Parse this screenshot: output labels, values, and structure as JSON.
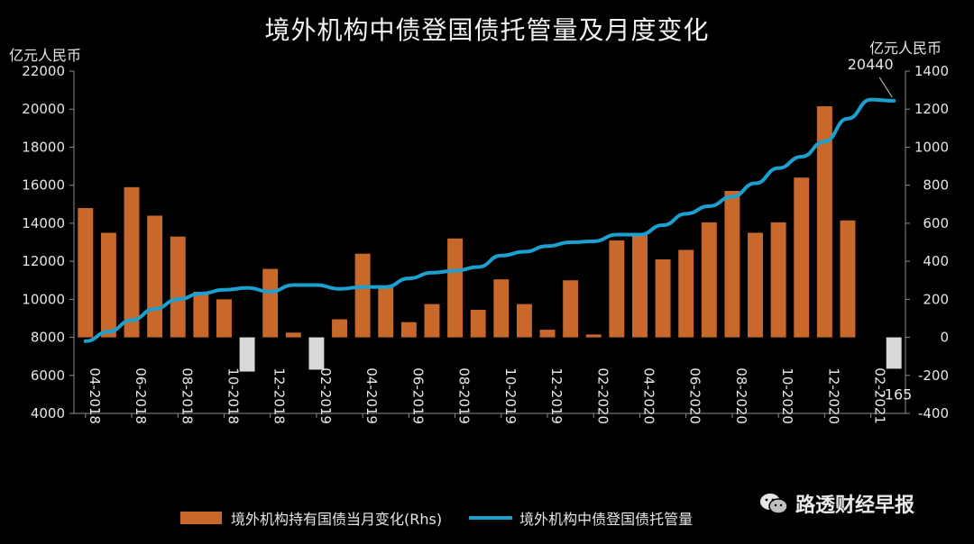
{
  "title": "境外机构中债登国债托管量及月度变化",
  "left_unit": "亿元人民币",
  "right_unit": "亿元人民币",
  "source": "路透财经早报",
  "annotations": {
    "last_line_value": "20440",
    "last_bar_value": "-165"
  },
  "colors": {
    "bar_positive": "#c8692b",
    "bar_negative": "#d9d9d9",
    "line": "#1ca0d0",
    "axis": "#8c8c8c",
    "background": "#000000"
  },
  "chart_data": {
    "type": "bar",
    "title": "境外机构中债登国债托管量及月度变化",
    "categories": [
      "04-2018",
      "05-2018",
      "06-2018",
      "07-2018",
      "08-2018",
      "09-2018",
      "10-2018",
      "11-2018",
      "12-2018",
      "01-2019",
      "02-2019",
      "03-2019",
      "04-2019",
      "05-2019",
      "06-2019",
      "07-2019",
      "08-2019",
      "09-2019",
      "10-2019",
      "11-2019",
      "12-2019",
      "01-2020",
      "02-2020",
      "03-2020",
      "04-2020",
      "05-2020",
      "06-2020",
      "07-2020",
      "08-2020",
      "09-2020",
      "10-2020",
      "11-2020",
      "12-2020",
      "01-2021",
      "02-2021",
      "03-2021"
    ],
    "x_tick_labels": [
      "04-2018",
      "06-2018",
      "08-2018",
      "10-2018",
      "12-2018",
      "02-2019",
      "04-2019",
      "06-2019",
      "08-2019",
      "10-2019",
      "12-2019",
      "02-2020",
      "04-2020",
      "06-2020",
      "08-2020",
      "10-2020",
      "12-2020",
      "02-2021"
    ],
    "series": [
      {
        "name": "境外机构持有国债当月变化(Rhs)",
        "axis": "right",
        "type": "bar",
        "values": [
          680,
          550,
          790,
          640,
          530,
          240,
          200,
          -180,
          360,
          25,
          -170,
          95,
          440,
          270,
          80,
          175,
          520,
          145,
          305,
          175,
          40,
          300,
          15,
          510,
          540,
          410,
          460,
          605,
          770,
          550,
          605,
          840,
          1215,
          615,
          0,
          -165
        ]
      },
      {
        "name": "境外机构中债登国债托管量",
        "axis": "left",
        "type": "line",
        "values": [
          7800,
          8300,
          8900,
          9500,
          10000,
          10300,
          10500,
          10600,
          10400,
          10750,
          10750,
          10550,
          10650,
          10650,
          11100,
          11400,
          11500,
          11700,
          12300,
          12500,
          12800,
          13000,
          13050,
          13400,
          13400,
          13900,
          14500,
          14900,
          15400,
          16100,
          16900,
          17500,
          18300,
          19500,
          20500,
          20440
        ]
      }
    ],
    "left_axis": {
      "ylim": [
        4000,
        22000
      ],
      "ticks": [
        4000,
        6000,
        8000,
        10000,
        12000,
        14000,
        16000,
        18000,
        20000,
        22000
      ]
    },
    "right_axis": {
      "ylim": [
        -400,
        1400
      ],
      "ticks": [
        -400,
        -200,
        0,
        200,
        400,
        600,
        800,
        1000,
        1200,
        1400
      ]
    },
    "grid": false,
    "legend": "bottom"
  }
}
